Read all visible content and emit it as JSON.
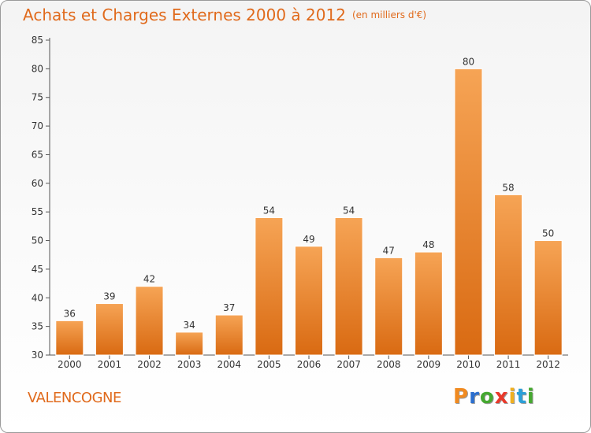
{
  "title": "Achats et Charges Externes 2000 à 2012",
  "unit": "(en milliers d'€)",
  "commune": "VALENCOGNE",
  "logo": {
    "text": "Proxiti",
    "letters": [
      {
        "ch": "P",
        "color": "#f08a20"
      },
      {
        "ch": "r",
        "color": "#2b6fcf"
      },
      {
        "ch": "o",
        "color": "#45a830"
      },
      {
        "ch": "x",
        "color": "#e8392a"
      },
      {
        "ch": "i",
        "color": "#f0b020"
      },
      {
        "ch": "t",
        "color": "#2b9fd8"
      },
      {
        "ch": "i",
        "color": "#45a830"
      }
    ]
  },
  "chart_data": {
    "type": "bar",
    "categories": [
      "2000",
      "2001",
      "2002",
      "2003",
      "2004",
      "2005",
      "2006",
      "2007",
      "2008",
      "2009",
      "2010",
      "2011",
      "2012"
    ],
    "values": [
      36,
      39,
      42,
      34,
      37,
      54,
      49,
      54,
      47,
      48,
      80,
      58,
      50
    ],
    "ylim": [
      30,
      85
    ],
    "yticks": [
      30,
      35,
      40,
      45,
      50,
      55,
      60,
      65,
      70,
      75,
      80,
      85
    ],
    "grid": false,
    "data_labels": true,
    "bar_color": "#f0862a"
  }
}
